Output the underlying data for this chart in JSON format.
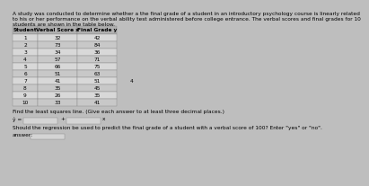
{
  "title_line1": "A study was conducted to determine whether a the final grade of a student in an introductory psychology course is linearly related",
  "title_line2": "to his or her performance on the verbal ability test administered before college entrance. The verbal scores and final grades for 10",
  "title_line3": "students are shown in the table below.",
  "table_headers": [
    "Student",
    "Verbal Score x",
    "Final Grade y"
  ],
  "students": [
    1,
    2,
    3,
    4,
    5,
    6,
    7,
    8,
    9,
    10
  ],
  "verbal_scores": [
    32,
    73,
    34,
    57,
    66,
    51,
    41,
    35,
    26,
    33
  ],
  "final_grades": [
    42,
    84,
    36,
    71,
    75,
    63,
    51,
    45,
    35,
    41
  ],
  "find_text": "Find the least squares line. (Give each answer to at least three decimal places.)",
  "equation_label": "ŷ =",
  "plus_label": "+",
  "x_label": "x",
  "should_text": "Should the regression be used to predict the final grade of a student with a verbal score of 100? Enter \"yes\" or \"no\".",
  "answer_label": "answer:",
  "note_char": "4",
  "bg_color": "#bebebe",
  "table_row_even": "#d8d8d8",
  "table_row_odd": "#c8c8c8",
  "header_bg": "#b0b0b0",
  "blank_bg": "#d4d4d4",
  "border_color": "#888888",
  "text_color": "#000000",
  "title_fontsize": 4.2,
  "table_fontsize": 4.2,
  "body_fontsize": 4.2
}
